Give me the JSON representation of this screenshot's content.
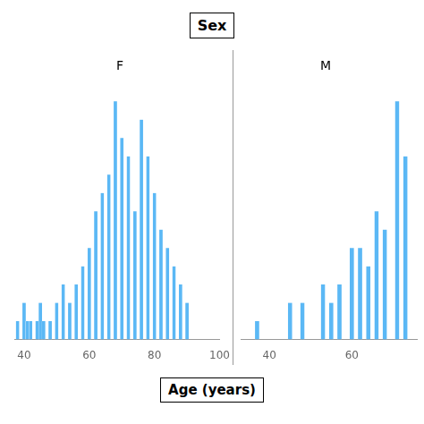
{
  "title": "Sex",
  "xlabel": "Age (years)",
  "chart_data": [
    {
      "type": "bar",
      "title": "F",
      "color": "#5BB8F5",
      "x": [
        38,
        39,
        40,
        41,
        42,
        43,
        44,
        45,
        46,
        47,
        48,
        49,
        50,
        51,
        52,
        53,
        54,
        55,
        56,
        57,
        58,
        59,
        60,
        61,
        62,
        63,
        64,
        65,
        66,
        67,
        68,
        69,
        70,
        71,
        72,
        73,
        74,
        75,
        76,
        77,
        78,
        79,
        80,
        81,
        82,
        83,
        84,
        85,
        86,
        87,
        88,
        89,
        90,
        91
      ],
      "values": [
        1,
        0,
        2,
        1,
        1,
        0,
        1,
        2,
        1,
        0,
        1,
        0,
        2,
        0,
        3,
        0,
        2,
        0,
        3,
        0,
        4,
        0,
        5,
        0,
        7,
        0,
        8,
        0,
        9,
        0,
        13,
        0,
        11,
        0,
        10,
        0,
        7,
        0,
        12,
        0,
        10,
        0,
        8,
        0,
        6,
        0,
        5,
        0,
        4,
        0,
        3,
        0,
        2,
        0
      ],
      "xlim": [
        37,
        100
      ],
      "xticks": [
        40,
        60,
        80,
        100
      ],
      "ylim": [
        0,
        14
      ],
      "grid": false,
      "tick_labels": "x"
    },
    {
      "type": "bar",
      "title": "M",
      "color": "#5BB8F5",
      "x": [
        35,
        36,
        37,
        38,
        39,
        40,
        41,
        42,
        43,
        44,
        45,
        46,
        47,
        48,
        49,
        50,
        51,
        52,
        53,
        54,
        55,
        56,
        57,
        58,
        59,
        60,
        61,
        62,
        63,
        64,
        65,
        66,
        67,
        68,
        69,
        70,
        71,
        72,
        73,
        74
      ],
      "values": [
        0,
        0,
        1,
        0,
        0,
        0,
        0,
        0,
        0,
        0,
        2,
        0,
        0,
        2,
        0,
        0,
        0,
        0,
        3,
        0,
        2,
        0,
        3,
        0,
        0,
        5,
        0,
        5,
        0,
        4,
        0,
        7,
        0,
        6,
        0,
        0,
        13,
        0,
        10,
        0
      ],
      "xlim": [
        33,
        76
      ],
      "xticks": [
        40,
        60
      ],
      "ylim": [
        0,
        14
      ],
      "grid": false,
      "tick_labels": "x"
    }
  ]
}
